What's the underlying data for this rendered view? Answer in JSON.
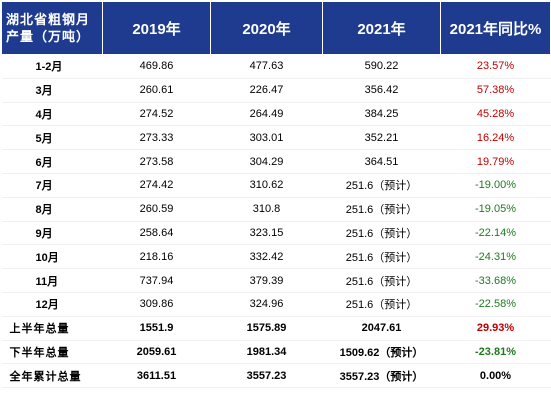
{
  "header": {
    "title_line1": "湖北省粗钢月",
    "title_line2": "产量（万吨）",
    "col1": "2019年",
    "col2": "2020年",
    "col3": "2021年",
    "col4": "2021年同比%"
  },
  "rows": [
    {
      "label": "1-2月",
      "y2019": "469.86",
      "y2020": "477.63",
      "y2021": "590.22",
      "yoy": "23.57%"
    },
    {
      "label": "3月",
      "y2019": "260.61",
      "y2020": "226.47",
      "y2021": "356.42",
      "yoy": "57.38%"
    },
    {
      "label": "4月",
      "y2019": "274.52",
      "y2020": "264.49",
      "y2021": "384.25",
      "yoy": "45.28%"
    },
    {
      "label": "5月",
      "y2019": "273.33",
      "y2020": "303.01",
      "y2021": "352.21",
      "yoy": "16.24%"
    },
    {
      "label": "6月",
      "y2019": "273.58",
      "y2020": "304.29",
      "y2021": "364.51",
      "yoy": "19.79%"
    },
    {
      "label": "7月",
      "y2019": "274.42",
      "y2020": "310.62",
      "y2021": "251.6（预计）",
      "yoy": "-19.00%"
    },
    {
      "label": "8月",
      "y2019": "260.59",
      "y2020": "310.8",
      "y2021": "251.6（预计）",
      "yoy": "-19.05%"
    },
    {
      "label": "9月",
      "y2019": "258.64",
      "y2020": "323.15",
      "y2021": "251.6（预计）",
      "yoy": "-22.14%"
    },
    {
      "label": "10月",
      "y2019": "218.16",
      "y2020": "332.42",
      "y2021": "251.6（预计）",
      "yoy": "-24.31%"
    },
    {
      "label": "11月",
      "y2019": "737.94",
      "y2020": "379.39",
      "y2021": "251.6（预计）",
      "yoy": "-33.68%"
    },
    {
      "label": "12月",
      "y2019": "309.86",
      "y2020": "324.96",
      "y2021": "251.6（预计）",
      "yoy": "-22.58%"
    }
  ],
  "summary": [
    {
      "label": "上半年总量",
      "y2019": "1551.9",
      "y2020": "1575.89",
      "y2021": "2047.61",
      "yoy": "29.93%"
    },
    {
      "label": "下半年总量",
      "y2019": "2059.61",
      "y2020": "1981.34",
      "y2021": "1509.62（预计）",
      "yoy": "-23.81%"
    },
    {
      "label": "全年累计总量",
      "y2019": "3611.51",
      "y2020": "3557.23",
      "y2021": "3557.23（预计）",
      "yoy": "0.00%"
    }
  ]
}
